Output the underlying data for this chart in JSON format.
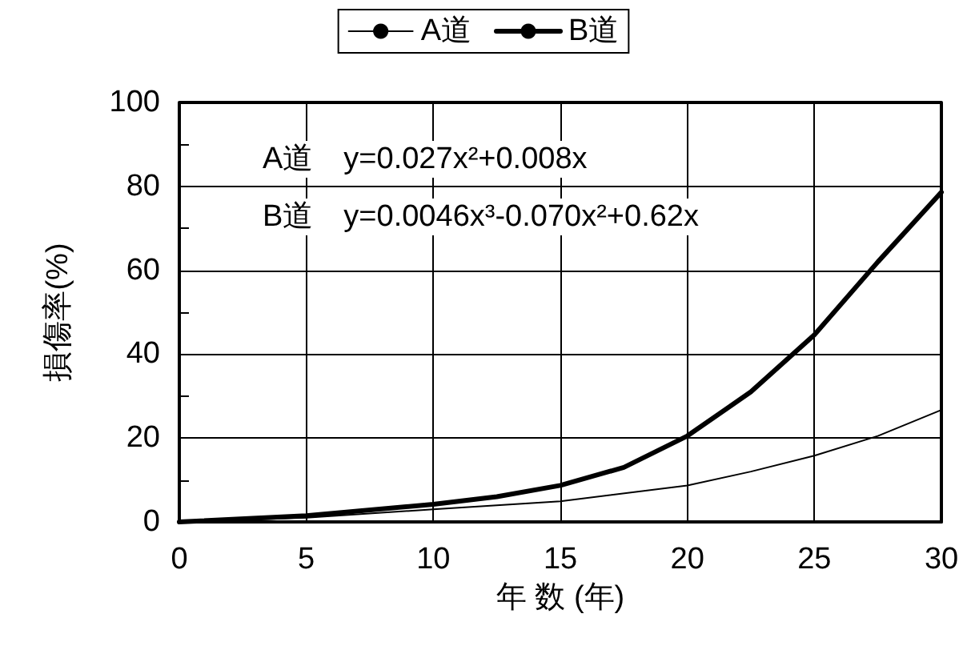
{
  "chart_data": {
    "type": "line",
    "xlabel": "年 数 (年)",
    "ylabel": "損傷率(%)",
    "xlim": [
      0,
      30
    ],
    "xticks": [
      0,
      5,
      10,
      15,
      20,
      25,
      30
    ],
    "ylim": [
      0,
      100
    ],
    "yticks": [
      0,
      {
        "value": 10,
        "label": null
      },
      20,
      {
        "value": 30,
        "label": null
      },
      40,
      {
        "value": 50,
        "label": null
      },
      60,
      {
        "value": 70,
        "label": null
      },
      80,
      {
        "value": 90,
        "label": null
      },
      100
    ],
    "grid": true,
    "legend": "top",
    "marker": "none",
    "line_style": "solid",
    "annotations": [
      "A道　y=0.027x²+0.008x",
      "B道　y=0.0046x³-0.070x²+0.62x"
    ],
    "series": [
      {
        "name": "A道",
        "color": "#000000",
        "x": [
          0,
          5,
          10,
          15,
          20,
          22.5,
          25,
          27.5,
          30
        ],
        "values": [
          0,
          1,
          3,
          4.9,
          8.7,
          12,
          15.8,
          20.5,
          26.7
        ]
      },
      {
        "name": "B道",
        "color": "#000000",
        "x": [
          0,
          5,
          10,
          12.5,
          15,
          17.5,
          20,
          22.5,
          25,
          27.5,
          30
        ],
        "values": [
          0,
          1.5,
          4.2,
          6,
          8.7,
          13,
          20.5,
          31,
          44.6,
          62,
          78.6
        ]
      }
    ]
  }
}
